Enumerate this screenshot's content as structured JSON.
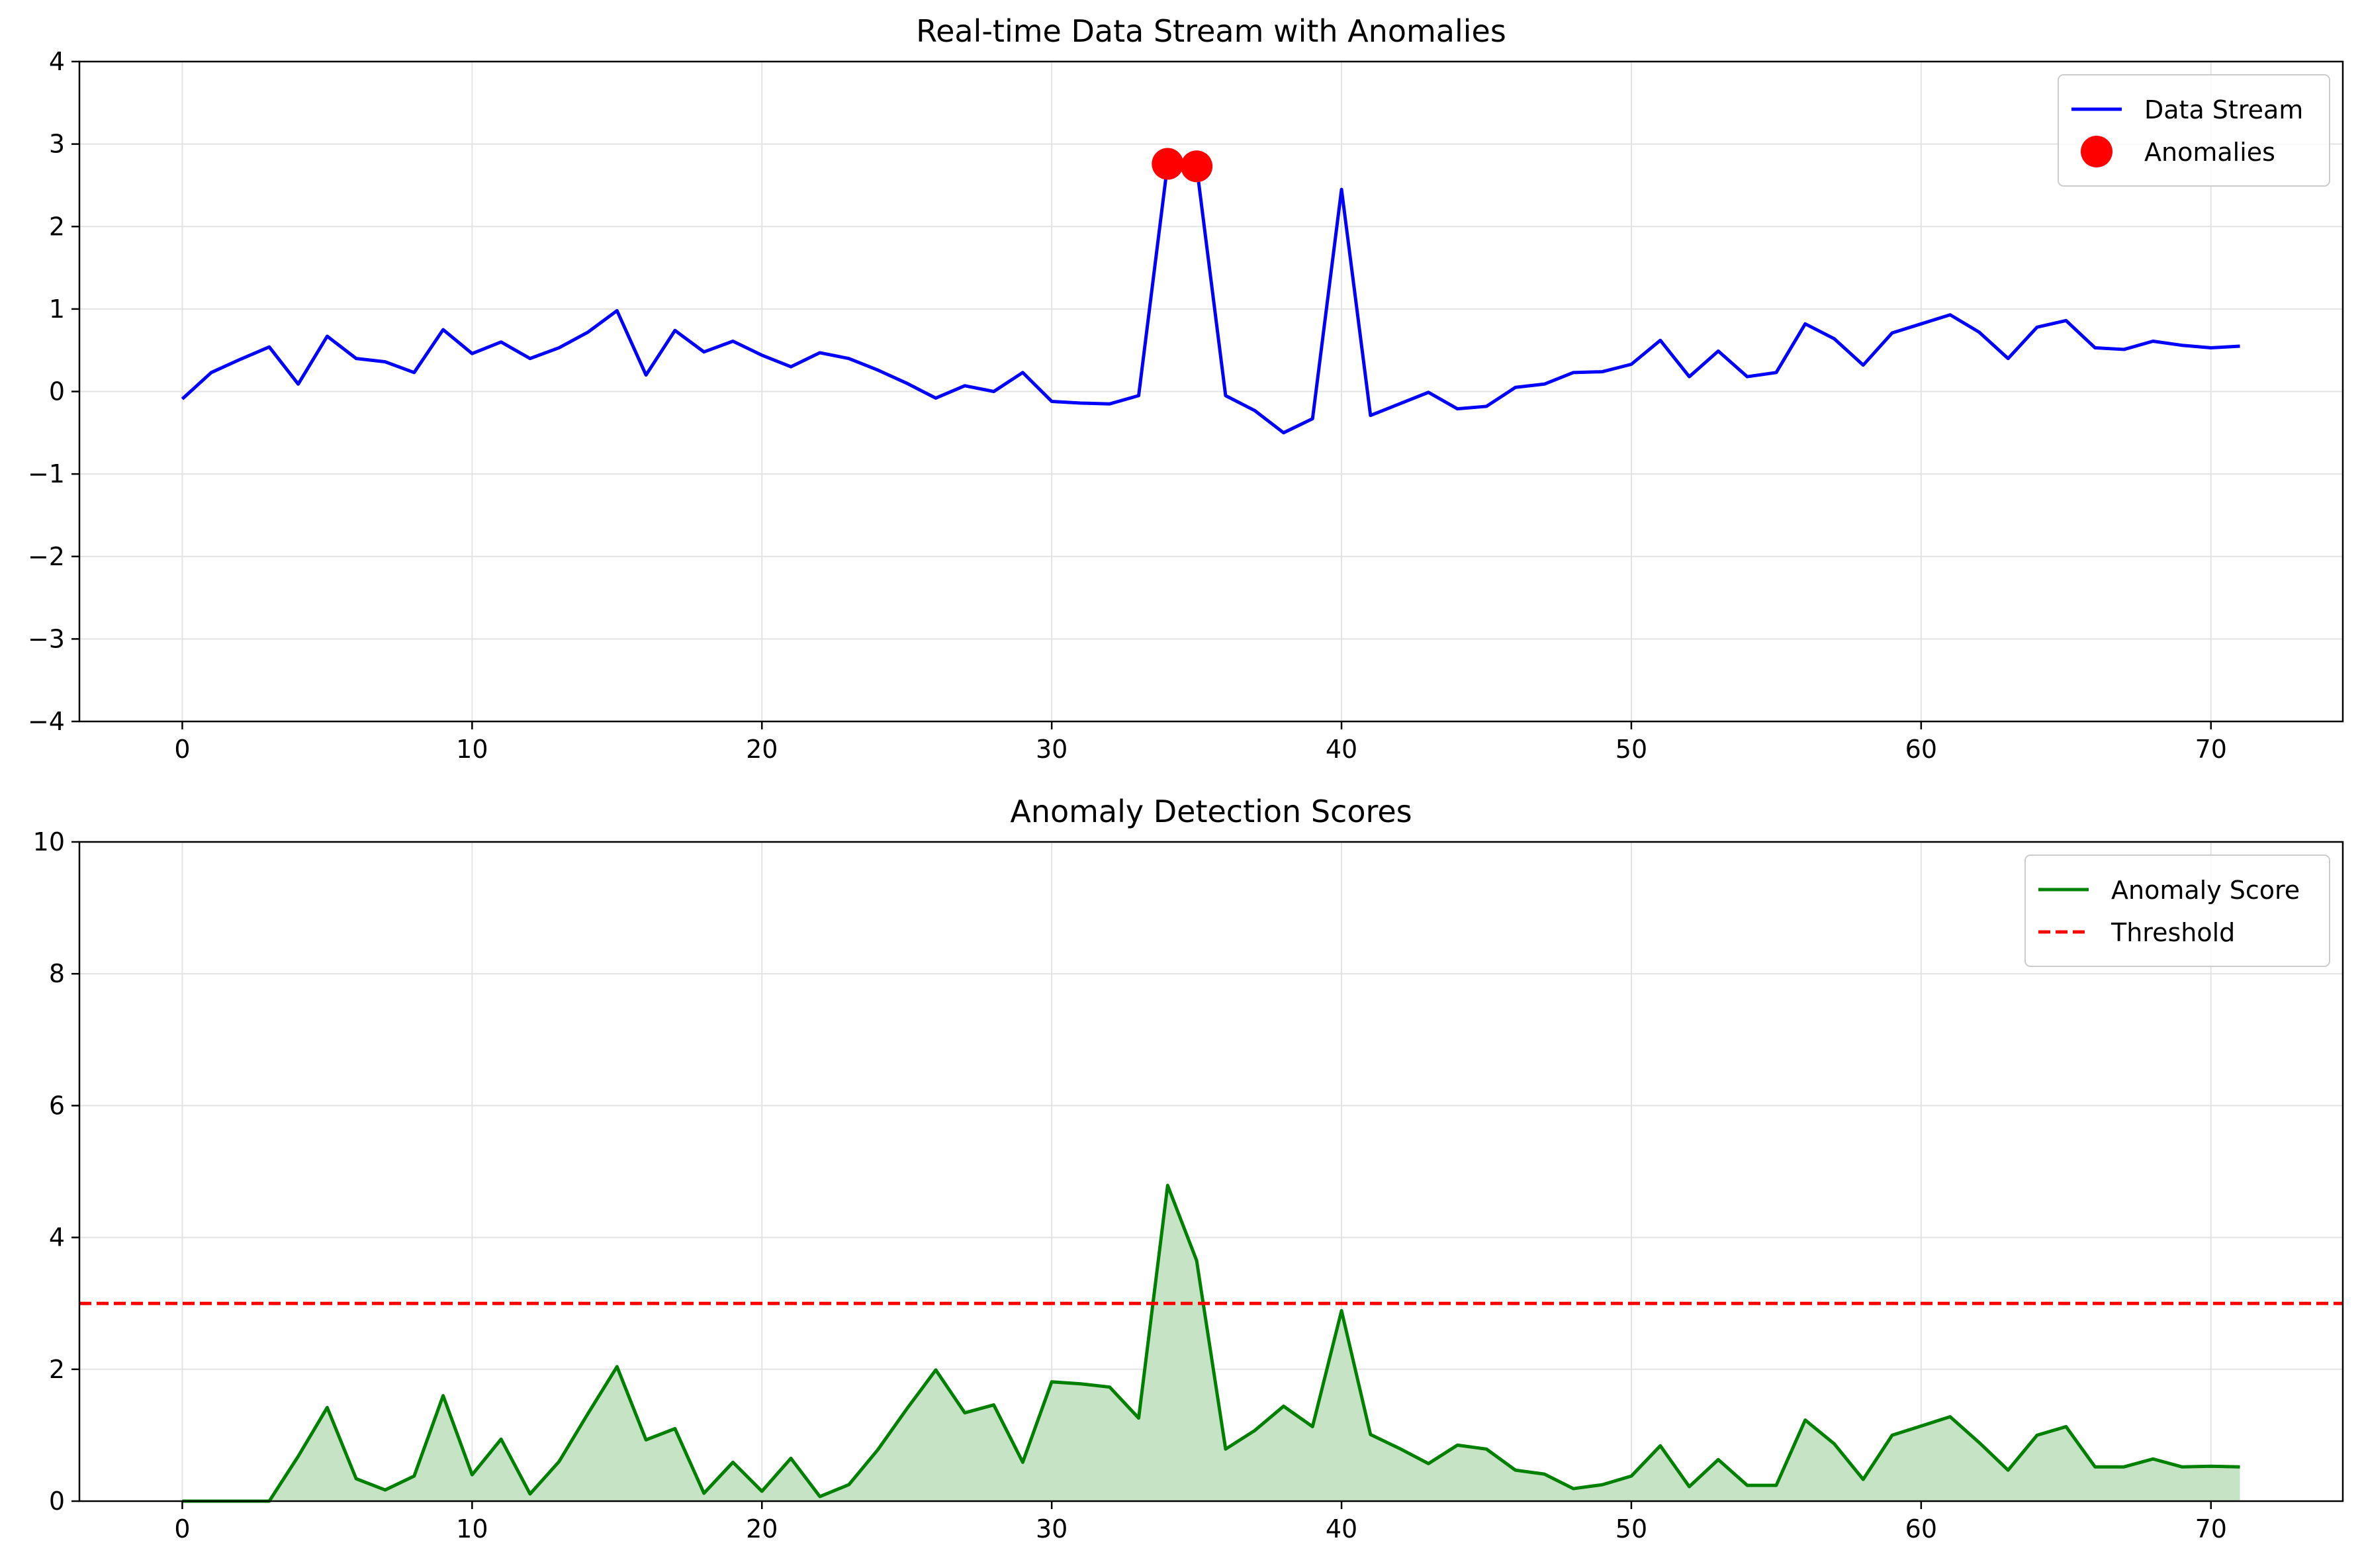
{
  "chart_data": [
    {
      "type": "line",
      "title": "Real-time Data Stream with Anomalies",
      "xlabel": "",
      "ylabel": "",
      "xlim": [
        -3.55,
        74.55
      ],
      "ylim": [
        -4,
        4
      ],
      "xticks": [
        0,
        10,
        20,
        30,
        40,
        50,
        60,
        70
      ],
      "yticks": [
        -4,
        -3,
        -2,
        -1,
        0,
        1,
        2,
        3,
        4
      ],
      "grid": true,
      "legend_position": "top-right",
      "series": [
        {
          "name": "Data Stream",
          "kind": "line",
          "color": "#0000ff",
          "x": [
            0,
            1,
            2,
            3,
            4,
            5,
            6,
            7,
            8,
            9,
            10,
            11,
            12,
            13,
            14,
            15,
            16,
            17,
            18,
            19,
            20,
            21,
            22,
            23,
            24,
            25,
            26,
            27,
            28,
            29,
            30,
            31,
            32,
            33,
            34,
            35,
            36,
            37,
            38,
            39,
            40,
            41,
            42,
            43,
            44,
            45,
            46,
            47,
            48,
            49,
            50,
            51,
            52,
            53,
            54,
            55,
            56,
            57,
            58,
            59,
            60,
            61,
            62,
            63,
            64,
            65,
            66,
            67,
            68,
            69,
            70,
            71
          ],
          "y": [
            -0.09,
            0.23,
            0.39,
            0.54,
            0.09,
            0.67,
            0.4,
            0.36,
            0.23,
            0.75,
            0.46,
            0.6,
            0.4,
            0.53,
            0.72,
            0.98,
            0.2,
            0.74,
            0.48,
            0.61,
            0.44,
            0.3,
            0.47,
            0.4,
            0.26,
            0.1,
            -0.08,
            0.07,
            0.0,
            0.23,
            -0.12,
            -0.14,
            -0.15,
            -0.05,
            2.76,
            2.73,
            -0.05,
            -0.23,
            -0.5,
            -0.33,
            2.45,
            -0.29,
            -0.15,
            -0.01,
            -0.21,
            -0.18,
            0.05,
            0.09,
            0.23,
            0.24,
            0.33,
            0.62,
            0.18,
            0.49,
            0.18,
            0.23,
            0.82,
            0.64,
            0.32,
            0.71,
            0.82,
            0.93,
            0.72,
            0.4,
            0.78,
            0.86,
            0.53,
            0.51,
            0.61,
            0.56,
            0.53,
            0.55
          ]
        },
        {
          "name": "Anomalies",
          "kind": "scatter",
          "color": "#ff0000",
          "x": [
            34,
            35
          ],
          "y": [
            2.76,
            2.73
          ]
        }
      ]
    },
    {
      "type": "area",
      "title": "Anomaly Detection Scores",
      "xlabel": "",
      "ylabel": "",
      "xlim": [
        -3.55,
        74.55
      ],
      "ylim": [
        0,
        10
      ],
      "xticks": [
        0,
        10,
        20,
        30,
        40,
        50,
        60,
        70
      ],
      "yticks": [
        0,
        2,
        4,
        6,
        8,
        10
      ],
      "grid": true,
      "legend_position": "top-right",
      "series": [
        {
          "name": "Anomaly Score",
          "kind": "line",
          "color": "#008000",
          "fill_color": "#c6e3c6",
          "x": [
            0,
            1,
            2,
            3,
            4,
            5,
            6,
            7,
            8,
            9,
            10,
            11,
            12,
            13,
            14,
            15,
            16,
            17,
            18,
            19,
            20,
            21,
            22,
            23,
            24,
            25,
            26,
            27,
            28,
            29,
            30,
            31,
            32,
            33,
            34,
            35,
            36,
            37,
            38,
            39,
            40,
            41,
            42,
            43,
            44,
            45,
            46,
            47,
            48,
            49,
            50,
            51,
            52,
            53,
            54,
            55,
            56,
            57,
            58,
            59,
            60,
            61,
            62,
            63,
            64,
            65,
            66,
            67,
            68,
            69,
            70,
            71
          ],
          "y": [
            0,
            0,
            0,
            0,
            0.68,
            1.42,
            0.34,
            0.17,
            0.38,
            1.6,
            0.4,
            0.94,
            0.11,
            0.6,
            1.33,
            2.04,
            0.93,
            1.1,
            0.12,
            0.59,
            0.15,
            0.65,
            0.07,
            0.25,
            0.78,
            1.4,
            1.99,
            1.34,
            1.46,
            0.59,
            1.81,
            1.78,
            1.73,
            1.26,
            4.79,
            3.65,
            0.79,
            1.07,
            1.44,
            1.13,
            2.89,
            1.01,
            0.8,
            0.57,
            0.85,
            0.79,
            0.47,
            0.41,
            0.19,
            0.25,
            0.38,
            0.84,
            0.22,
            0.63,
            0.24,
            0.24,
            1.23,
            0.87,
            0.33,
            1.0,
            1.14,
            1.28,
            0.89,
            0.47,
            1.0,
            1.13,
            0.52,
            0.52,
            0.64,
            0.52,
            0.53,
            0.52
          ]
        },
        {
          "name": "Threshold",
          "kind": "hline",
          "color": "#ff0000",
          "dash": true,
          "y": 3
        }
      ]
    }
  ]
}
